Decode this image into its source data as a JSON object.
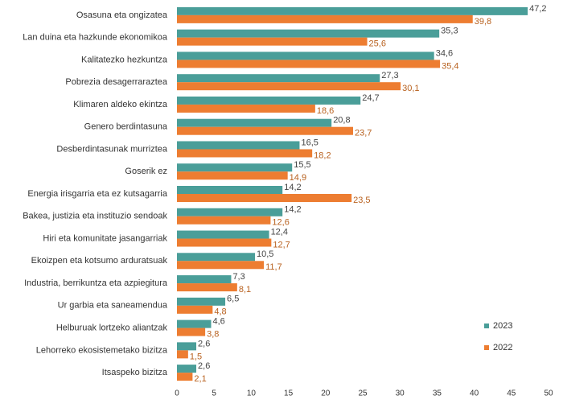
{
  "chart_data": {
    "type": "hbar",
    "categories": [
      "Osasuna eta ongizatea",
      "Lan duina eta hazkunde ekonomikoa",
      "Kalitatezko hezkuntza",
      "Pobrezia desagerraraztea",
      "Klimaren aldeko ekintza",
      "Genero berdintasuna",
      "Desberdintasunak murriztea",
      "Goserik ez",
      "Energia irisgarria eta ez kutsagarria",
      "Bakea, justizia eta instituzio sendoak",
      "Hiri eta komunitate jasangarriak",
      "Ekoizpen eta kotsumo arduratsuak",
      "Industria, berrikuntza eta azpiegitura",
      "Ur garbia eta saneamendua",
      "Helburuak lortzeko aliantzak",
      "Lehorreko ekosistemetako bizitza",
      "Itsaspeko bizitza"
    ],
    "series": [
      {
        "name": "2023",
        "color": "#4a9e99",
        "values": [
          47.2,
          35.3,
          34.6,
          27.3,
          24.7,
          20.8,
          16.5,
          15.5,
          14.2,
          14.2,
          12.4,
          10.5,
          7.3,
          6.5,
          4.6,
          2.6,
          2.6
        ],
        "value_labels": [
          "47,2",
          "35,3",
          "34,6",
          "27,3",
          "24,7",
          "20,8",
          "16,5",
          "15,5",
          "14,2",
          "14,2",
          "12,4",
          "10,5",
          "7,3",
          "6,5",
          "4,6",
          "2,6",
          "2,6"
        ]
      },
      {
        "name": "2022",
        "color": "#ed7d31",
        "values": [
          39.8,
          25.6,
          35.4,
          30.1,
          18.6,
          23.7,
          18.2,
          14.9,
          23.5,
          12.6,
          12.7,
          11.7,
          8.1,
          4.8,
          3.8,
          1.5,
          2.1
        ],
        "value_labels": [
          "39,8",
          "25,6",
          "35,4",
          "30,1",
          "18,6",
          "23,7",
          "18,2",
          "14,9",
          "23,5",
          "12,6",
          "12,7",
          "11,7",
          "8,1",
          "4,8",
          "3,8",
          "1,5",
          "2,1"
        ]
      }
    ],
    "xlim": [
      0,
      50
    ],
    "xticks": [
      0,
      5,
      10,
      15,
      20,
      25,
      30,
      35,
      40,
      45,
      50
    ],
    "legend": "lower right"
  }
}
